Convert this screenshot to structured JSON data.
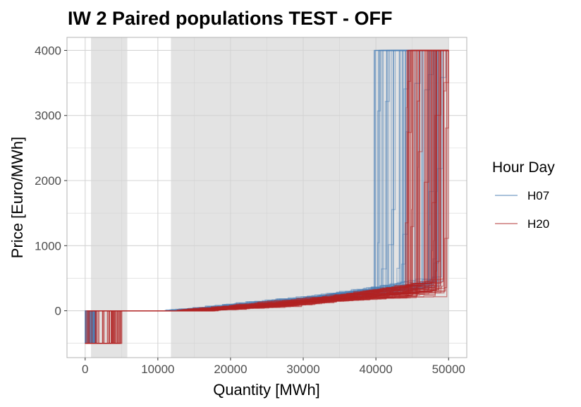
{
  "chart_data": {
    "type": "line",
    "title": "IW 2 Paired populations TEST - OFF",
    "xlabel": "Quantity [MWh]",
    "ylabel": "Price [Euro/MWh]",
    "xlim": [
      -2500,
      52500
    ],
    "ylim": [
      -720,
      4200
    ],
    "x_ticks": [
      0,
      10000,
      20000,
      30000,
      40000,
      50000
    ],
    "x_tick_labels": [
      "0",
      "10000",
      "20000",
      "30000",
      "40000",
      "50000"
    ],
    "y_ticks": [
      0,
      1000,
      2000,
      3000,
      4000
    ],
    "y_tick_labels": [
      "0",
      "1000",
      "2000",
      "3000",
      "4000"
    ],
    "grid": true,
    "shaded_x_ranges": [
      [
        800,
        5800
      ],
      [
        11800,
        50000
      ]
    ],
    "colors": {
      "H07": "#4a7fb5",
      "H20": "#b22222",
      "shade": "#e3e3e3",
      "grid": "#d4d4d4"
    },
    "legend": {
      "title": "Hour Day",
      "position": "right",
      "entries": [
        {
          "label": "H07",
          "color": "#a9c2db"
        },
        {
          "label": "H20",
          "color": "#d99a9a"
        }
      ]
    },
    "series": [
      {
        "hour": "H07",
        "curve_count": 60,
        "typical_curve": [
          [
            0,
            -500
          ],
          [
            600,
            -500
          ],
          [
            600,
            0
          ],
          [
            11000,
            0
          ],
          [
            20000,
            120
          ],
          [
            30000,
            200
          ],
          [
            40000,
            280
          ],
          [
            47000,
            330
          ],
          [
            47000,
            4000
          ],
          [
            50000,
            4000
          ]
        ],
        "jump_to_max_x_range": [
          39500,
          49500
        ]
      },
      {
        "hour": "H20",
        "curve_count": 60,
        "typical_curve": [
          [
            0,
            -500
          ],
          [
            600,
            -500
          ],
          [
            600,
            0
          ],
          [
            11500,
            0
          ],
          [
            20000,
            100
          ],
          [
            30000,
            180
          ],
          [
            40000,
            240
          ],
          [
            50000,
            300
          ]
        ],
        "jump_to_max_x_range": [
          44000,
          50000
        ]
      }
    ]
  }
}
